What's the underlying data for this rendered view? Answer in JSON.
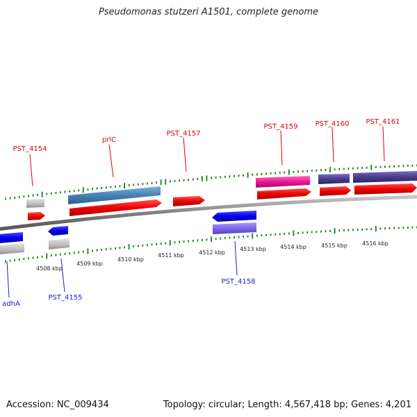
{
  "title": "Pseudomonas stutzeri A1501, complete genome",
  "footer": {
    "accession": "Accession: NC_009434",
    "summary": "Topology: circular; Length: 4,567,418 bp; Genes: 4,201"
  },
  "colors": {
    "forward_label": "#dd0000",
    "reverse_label": "#1a1acc",
    "tick": "#2a8a2a",
    "backbone": "#8a8a8a"
  },
  "scale_labels": [
    "4508 kbp",
    "4509 kbp",
    "4510 kbp",
    "4511 kbp",
    "4512 kbp",
    "4513 kbp",
    "4514 kbp",
    "4515 kbp",
    "4516 kbp"
  ],
  "genes": [
    {
      "name": "PST_4154",
      "strand": "forward"
    },
    {
      "name": "prlC",
      "strand": "forward"
    },
    {
      "name": "PST_4157",
      "strand": "forward"
    },
    {
      "name": "PST_4159",
      "strand": "forward"
    },
    {
      "name": "PST_4160",
      "strand": "forward"
    },
    {
      "name": "PST_4161",
      "strand": "forward"
    },
    {
      "name": "adhA",
      "strand": "reverse"
    },
    {
      "name": "PST_4155",
      "strand": "reverse"
    },
    {
      "name": "PST_4158",
      "strand": "reverse"
    }
  ]
}
